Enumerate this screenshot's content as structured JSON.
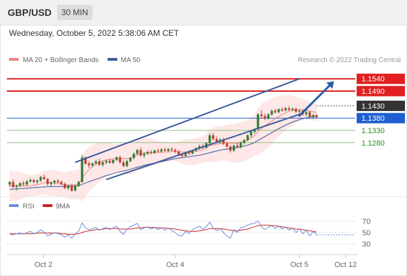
{
  "header": {
    "symbol": "GBP/USD",
    "timeframe": "30 MIN"
  },
  "datetime": "Wednesday, October 5, 2022 5:38:06 AM CET",
  "credit": "Research © 2022 Trading Central",
  "legend": {
    "ma20": "MA 20 + Bollinger Bands",
    "ma50": "MA 50",
    "rsi": "RSI",
    "ma9": "9MA"
  },
  "colors": {
    "ma20": "#f08080",
    "ma50": "#3a5a9a",
    "band": "#fde3e3",
    "resistance": "#e02020",
    "current": "#333333",
    "pivot": "#1f5fcf",
    "support": "#90c080",
    "support_text": "#2a8a1f",
    "candle_up": "#2c7a2c",
    "candle_down": "#c0392b",
    "trend": "#3a5a9a",
    "arrow": "#2a5da8",
    "rsi": "#6a8ed8",
    "ma9": "#d02020"
  },
  "icons": {
    "forecast": "arrow-up-right-icon"
  },
  "levels": {
    "r2": "1.1540",
    "r1": "1.1490",
    "current": "1.1430",
    "pivot": "1.1380",
    "s1": "1.1330",
    "s2": "1.1280"
  },
  "x_ticks": [
    "Oct 2",
    "Oct 4",
    "Oct 5",
    "Oct 12"
  ],
  "rsi_ticks": [
    "70",
    "50",
    "30"
  ],
  "chart_data": [
    {
      "type": "candlestick",
      "title": "GBP/USD 30 MIN",
      "x": "time",
      "ylim": [
        1.108,
        1.158
      ],
      "levels": [
        1.154,
        1.149,
        1.143,
        1.138,
        1.133,
        1.128
      ],
      "candles": [
        [
          1.111,
          1.1125,
          1.11,
          1.112
        ],
        [
          1.112,
          1.113,
          1.1095,
          1.11
        ],
        [
          1.11,
          1.111,
          1.1085,
          1.1105
        ],
        [
          1.1105,
          1.112,
          1.11,
          1.1115
        ],
        [
          1.1115,
          1.1125,
          1.1105,
          1.111
        ],
        [
          1.111,
          1.1128,
          1.1105,
          1.1122
        ],
        [
          1.1122,
          1.1135,
          1.1118,
          1.1128
        ],
        [
          1.1128,
          1.1132,
          1.1115,
          1.112
        ],
        [
          1.112,
          1.113,
          1.1112,
          1.1126
        ],
        [
          1.1126,
          1.1145,
          1.112,
          1.114
        ],
        [
          1.114,
          1.115,
          1.1128,
          1.1132
        ],
        [
          1.1132,
          1.1136,
          1.1105,
          1.1112
        ],
        [
          1.1112,
          1.1122,
          1.11,
          1.1118
        ],
        [
          1.1118,
          1.1128,
          1.111,
          1.1125
        ],
        [
          1.1125,
          1.1132,
          1.1115,
          1.112
        ],
        [
          1.112,
          1.1126,
          1.1108,
          1.1112
        ],
        [
          1.1112,
          1.1118,
          1.109,
          1.1095
        ],
        [
          1.1095,
          1.111,
          1.1088,
          1.1105
        ],
        [
          1.1105,
          1.1112,
          1.108,
          1.1085
        ],
        [
          1.1085,
          1.111,
          1.1082,
          1.1105
        ],
        [
          1.1105,
          1.1125,
          1.11,
          1.112
        ],
        [
          1.112,
          1.123,
          1.1115,
          1.122
        ],
        [
          1.122,
          1.1225,
          1.119,
          1.1195
        ],
        [
          1.1195,
          1.1205,
          1.1178,
          1.1188
        ],
        [
          1.1188,
          1.12,
          1.118,
          1.1196
        ],
        [
          1.1196,
          1.121,
          1.119,
          1.1204
        ],
        [
          1.1204,
          1.1215,
          1.1185,
          1.119
        ],
        [
          1.119,
          1.1205,
          1.1182,
          1.12
        ],
        [
          1.12,
          1.1212,
          1.1192,
          1.1206
        ],
        [
          1.1206,
          1.1215,
          1.1195,
          1.1198
        ],
        [
          1.1198,
          1.1212,
          1.1192,
          1.121
        ],
        [
          1.121,
          1.1225,
          1.1205,
          1.122
        ],
        [
          1.122,
          1.1228,
          1.1195,
          1.12
        ],
        [
          1.12,
          1.1208,
          1.118,
          1.1185
        ],
        [
          1.1185,
          1.121,
          1.118,
          1.1205
        ],
        [
          1.1205,
          1.1222,
          1.12,
          1.1218
        ],
        [
          1.1218,
          1.124,
          1.1212,
          1.1235
        ],
        [
          1.1235,
          1.1255,
          1.123,
          1.125
        ],
        [
          1.125,
          1.1262,
          1.1222,
          1.1228
        ],
        [
          1.1228,
          1.124,
          1.1218,
          1.1235
        ],
        [
          1.1235,
          1.1248,
          1.123,
          1.1242
        ],
        [
          1.1242,
          1.125,
          1.1232,
          1.1238
        ],
        [
          1.1238,
          1.1252,
          1.1234,
          1.1248
        ],
        [
          1.1248,
          1.1256,
          1.124,
          1.1245
        ],
        [
          1.1245,
          1.1258,
          1.124,
          1.1252
        ],
        [
          1.1252,
          1.126,
          1.1244,
          1.1248
        ],
        [
          1.1248,
          1.1258,
          1.1242,
          1.1254
        ],
        [
          1.1254,
          1.1262,
          1.1246,
          1.125
        ],
        [
          1.125,
          1.1256,
          1.1238,
          1.1244
        ],
        [
          1.1244,
          1.125,
          1.1226,
          1.1232
        ],
        [
          1.1232,
          1.1238,
          1.122,
          1.1226
        ],
        [
          1.1226,
          1.1245,
          1.1222,
          1.124
        ],
        [
          1.124,
          1.125,
          1.123,
          1.1236
        ],
        [
          1.1236,
          1.1252,
          1.1232,
          1.1248
        ],
        [
          1.1248,
          1.1262,
          1.1244,
          1.1258
        ],
        [
          1.1258,
          1.1272,
          1.1252,
          1.1266
        ],
        [
          1.1266,
          1.1275,
          1.1255,
          1.126
        ],
        [
          1.126,
          1.1282,
          1.1256,
          1.1278
        ],
        [
          1.1278,
          1.1318,
          1.1272,
          1.131
        ],
        [
          1.131,
          1.132,
          1.129,
          1.1295
        ],
        [
          1.1295,
          1.1305,
          1.1278,
          1.1284
        ],
        [
          1.1284,
          1.1298,
          1.1276,
          1.1292
        ],
        [
          1.1292,
          1.13,
          1.127,
          1.1276
        ],
        [
          1.1276,
          1.1284,
          1.1258,
          1.1264
        ],
        [
          1.1264,
          1.127,
          1.124,
          1.1248
        ],
        [
          1.1248,
          1.1272,
          1.1242,
          1.1268
        ],
        [
          1.1268,
          1.128,
          1.1258,
          1.1262
        ],
        [
          1.1262,
          1.1285,
          1.1256,
          1.128
        ],
        [
          1.128,
          1.1296,
          1.1272,
          1.129
        ],
        [
          1.129,
          1.1315,
          1.1286,
          1.131
        ],
        [
          1.131,
          1.133,
          1.1302,
          1.1325
        ],
        [
          1.1325,
          1.134,
          1.1318,
          1.1335
        ],
        [
          1.1335,
          1.14,
          1.133,
          1.1395
        ],
        [
          1.1395,
          1.1412,
          1.1382,
          1.1388
        ],
        [
          1.1388,
          1.1398,
          1.1372,
          1.1378
        ],
        [
          1.1378,
          1.14,
          1.1374,
          1.1395
        ],
        [
          1.1395,
          1.1415,
          1.139,
          1.141
        ],
        [
          1.141,
          1.1418,
          1.1398,
          1.1404
        ],
        [
          1.1404,
          1.142,
          1.14,
          1.1416
        ],
        [
          1.1416,
          1.1424,
          1.1406,
          1.1412
        ],
        [
          1.1412,
          1.1426,
          1.1408,
          1.142
        ],
        [
          1.142,
          1.1428,
          1.141,
          1.1414
        ],
        [
          1.1414,
          1.1424,
          1.1408,
          1.1418
        ],
        [
          1.1418,
          1.1422,
          1.14,
          1.1406
        ],
        [
          1.1406,
          1.1416,
          1.1396,
          1.141
        ],
        [
          1.141,
          1.1415,
          1.139,
          1.1396
        ],
        [
          1.1396,
          1.1412,
          1.1388,
          1.1404
        ],
        [
          1.1404,
          1.141,
          1.138,
          1.1386
        ],
        [
          1.1386,
          1.1398,
          1.1378,
          1.1392
        ],
        [
          1.1392,
          1.1396,
          1.138,
          1.1384
        ]
      ],
      "bollinger_upper": [
        1.117,
        1.1165,
        1.1162,
        1.116,
        1.1155,
        1.115,
        1.1148,
        1.115,
        1.1152,
        1.1158,
        1.1165,
        1.1168,
        1.117,
        1.1168,
        1.1165,
        1.1162,
        1.116,
        1.1162,
        1.1165,
        1.1168,
        1.1172,
        1.123,
        1.125,
        1.1262,
        1.127,
        1.1276,
        1.128,
        1.1282,
        1.128,
        1.1278,
        1.1275,
        1.1274,
        1.1276,
        1.1278,
        1.128,
        1.1284,
        1.129,
        1.1296,
        1.13,
        1.1302,
        1.13,
        1.1296,
        1.1292,
        1.1288,
        1.1286,
        1.1284,
        1.1282,
        1.128,
        1.1282,
        1.1286,
        1.129,
        1.1292,
        1.1294,
        1.1296,
        1.1298,
        1.1302,
        1.1308,
        1.1316,
        1.1334,
        1.1342,
        1.1346,
        1.1348,
        1.135,
        1.1352,
        1.1355,
        1.1356,
        1.1358,
        1.1362,
        1.1366,
        1.1372,
        1.1382,
        1.1392,
        1.142,
        1.1438,
        1.1448,
        1.1455,
        1.1462,
        1.1466,
        1.147,
        1.1472,
        1.1474,
        1.1474,
        1.1472,
        1.1468,
        1.1464,
        1.1458,
        1.1452,
        1.1446,
        1.1442,
        1.1438
      ],
      "bollinger_lower": [
        1.104,
        1.1042,
        1.1045,
        1.1048,
        1.1052,
        1.1058,
        1.1062,
        1.1064,
        1.1066,
        1.1068,
        1.107,
        1.1068,
        1.1066,
        1.1064,
        1.1062,
        1.106,
        1.1056,
        1.1054,
        1.105,
        1.105,
        1.1052,
        1.104,
        1.106,
        1.108,
        1.1095,
        1.1108,
        1.112,
        1.113,
        1.114,
        1.1148,
        1.1155,
        1.116,
        1.1158,
        1.1152,
        1.115,
        1.1152,
        1.1158,
        1.1165,
        1.117,
        1.1175,
        1.118,
        1.1184,
        1.1188,
        1.1192,
        1.1196,
        1.12,
        1.1204,
        1.1208,
        1.1206,
        1.12,
        1.1194,
        1.119,
        1.1188,
        1.1188,
        1.119,
        1.1194,
        1.1198,
        1.1202,
        1.12,
        1.12,
        1.1202,
        1.1206,
        1.1208,
        1.1206,
        1.12,
        1.1198,
        1.1198,
        1.12,
        1.1204,
        1.121,
        1.1218,
        1.1228,
        1.123,
        1.1238,
        1.125,
        1.1262,
        1.1275,
        1.129,
        1.1305,
        1.1318,
        1.133,
        1.1342,
        1.1352,
        1.136,
        1.1366,
        1.137,
        1.1372,
        1.1372,
        1.137,
        1.1368
      ],
      "ma20_values": [
        1.1105,
        1.1104,
        1.1103,
        1.1104,
        1.1104,
        1.1104,
        1.1105,
        1.1107,
        1.1109,
        1.1113,
        1.1117,
        1.1118,
        1.1118,
        1.1116,
        1.1114,
        1.1111,
        1.1108,
        1.1108,
        1.1108,
        1.1109,
        1.1112,
        1.1135,
        1.1155,
        1.1171,
        1.1183,
        1.1192,
        1.12,
        1.1206,
        1.121,
        1.1213,
        1.1215,
        1.1217,
        1.1217,
        1.1215,
        1.1215,
        1.1218,
        1.1224,
        1.123,
        1.1235,
        1.1238,
        1.124,
        1.124,
        1.124,
        1.124,
        1.1241,
        1.1242,
        1.1243,
        1.1244,
        1.1244,
        1.1243,
        1.1242,
        1.1241,
        1.1241,
        1.1242,
        1.1244,
        1.1248,
        1.1253,
        1.1259,
        1.1267,
        1.1271,
        1.1274,
        1.1277,
        1.1279,
        1.1279,
        1.1278,
        1.1277,
        1.1278,
        1.1281,
        1.1285,
        1.1291,
        1.13,
        1.131,
        1.1325,
        1.1338,
        1.1349,
        1.1358,
        1.1368,
        1.1378,
        1.1387,
        1.1395,
        1.1402,
        1.1408,
        1.1412,
        1.1414,
        1.1415,
        1.1414,
        1.1412,
        1.1409,
        1.1406,
        1.1403
      ],
      "ma50_values": [
        1.109,
        1.1091,
        1.1092,
        1.1093,
        1.1094,
        1.1095,
        1.1096,
        1.1097,
        1.1098,
        1.1099,
        1.11,
        1.1101,
        1.1101,
        1.1102,
        1.1102,
        1.1102,
        1.1102,
        1.1103,
        1.1103,
        1.1104,
        1.1105,
        1.111,
        1.1116,
        1.1121,
        1.1126,
        1.1131,
        1.1136,
        1.1141,
        1.1146,
        1.115,
        1.1154,
        1.1158,
        1.1162,
        1.1165,
        1.1168,
        1.1172,
        1.1176,
        1.118,
        1.1184,
        1.1188,
        1.1191,
        1.1194,
        1.1197,
        1.12,
        1.1203,
        1.1206,
        1.1209,
        1.1212,
        1.1215,
        1.1217,
        1.1219,
        1.1221,
        1.1223,
        1.1225,
        1.1227,
        1.1229,
        1.1232,
        1.1235,
        1.1239,
        1.1243,
        1.1246,
        1.1249,
        1.1252,
        1.1254,
        1.1256,
        1.1258,
        1.126,
        1.1263,
        1.1266,
        1.127,
        1.1275,
        1.1281,
        1.1289,
        1.1297,
        1.1305,
        1.1313,
        1.1321,
        1.1329,
        1.1337,
        1.1344,
        1.1351,
        1.1358,
        1.1364,
        1.1369,
        1.1374,
        1.1378,
        1.1381,
        1.1384,
        1.1386,
        1.1388
      ],
      "trend_channel": {
        "upper": [
          [
            19,
            1.12
          ],
          [
            84,
            1.154
          ]
        ],
        "lower": [
          [
            28,
            1.113
          ],
          [
            84,
            1.1395
          ]
        ]
      },
      "forecast_arrow": {
        "from": [
          84,
          1.139
        ],
        "to": [
          94,
          1.153
        ]
      }
    },
    {
      "type": "line",
      "title": "RSI",
      "ylim": [
        20,
        80
      ],
      "yticks": [
        70,
        50,
        30
      ],
      "series": [
        {
          "name": "RSI",
          "values": [
            47,
            46,
            48,
            49,
            47,
            50,
            52,
            48,
            50,
            55,
            51,
            44,
            47,
            50,
            48,
            46,
            42,
            46,
            40,
            48,
            52,
            67,
            58,
            55,
            57,
            59,
            54,
            57,
            59,
            55,
            58,
            61,
            52,
            47,
            56,
            60,
            63,
            66,
            55,
            58,
            60,
            56,
            59,
            55,
            58,
            54,
            58,
            54,
            50,
            45,
            44,
            52,
            48,
            55,
            58,
            61,
            56,
            60,
            68,
            58,
            53,
            57,
            50,
            44,
            40,
            55,
            50,
            58,
            60,
            63,
            65,
            66,
            70,
            60,
            55,
            59,
            62,
            57,
            61,
            56,
            60,
            54,
            58,
            50,
            56,
            48,
            54,
            44,
            52,
            46
          ]
        },
        {
          "name": "9MA",
          "values": [
            48,
            48,
            48,
            48,
            48,
            48,
            48,
            48,
            49,
            49,
            49,
            49,
            49,
            49,
            49,
            48,
            48,
            47,
            47,
            47,
            48,
            50,
            52,
            53,
            54,
            55,
            55,
            56,
            57,
            57,
            57,
            57,
            56,
            56,
            56,
            56,
            57,
            58,
            58,
            59,
            59,
            59,
            59,
            58,
            58,
            58,
            57,
            57,
            56,
            55,
            54,
            53,
            52,
            52,
            52,
            53,
            54,
            55,
            57,
            57,
            57,
            57,
            56,
            55,
            54,
            53,
            53,
            54,
            55,
            56,
            58,
            60,
            62,
            63,
            63,
            63,
            62,
            62,
            61,
            60,
            59,
            58,
            57,
            56,
            56,
            55,
            54,
            53,
            52,
            51
          ]
        }
      ]
    }
  ]
}
